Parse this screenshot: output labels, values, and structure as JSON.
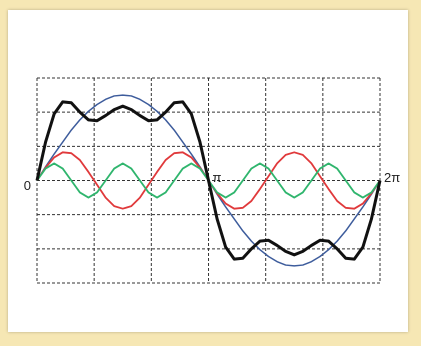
{
  "chart_data": {
    "type": "line",
    "x": [
      0,
      0.157,
      0.314,
      0.471,
      0.628,
      0.785,
      0.942,
      1.1,
      1.257,
      1.414,
      1.571,
      1.728,
      1.885,
      2.042,
      2.199,
      2.356,
      2.513,
      2.67,
      2.827,
      2.985,
      3.142,
      3.299,
      3.456,
      3.613,
      3.77,
      3.927,
      4.084,
      4.241,
      4.398,
      4.555,
      4.712,
      4.869,
      5.027,
      5.184,
      5.341,
      5.498,
      5.655,
      5.812,
      5.969,
      6.126,
      6.283
    ],
    "series": [
      {
        "color": "#3d5c9c",
        "width": 1.5,
        "values": [
          0,
          0.16,
          0.31,
          0.45,
          0.59,
          0.71,
          0.81,
          0.89,
          0.95,
          0.99,
          1,
          0.99,
          0.95,
          0.89,
          0.81,
          0.71,
          0.59,
          0.45,
          0.31,
          0.16,
          0,
          -0.16,
          -0.31,
          -0.45,
          -0.59,
          -0.71,
          -0.81,
          -0.89,
          -0.95,
          -0.99,
          -1,
          -0.99,
          -0.95,
          -0.89,
          -0.81,
          -0.71,
          -0.59,
          -0.45,
          -0.31,
          -0.16,
          0
        ]
      },
      {
        "color": "#e0393b",
        "width": 1.8,
        "values": [
          0,
          0.15,
          0.27,
          0.33,
          0.32,
          0.24,
          0.1,
          -0.05,
          -0.2,
          -0.3,
          -0.33,
          -0.3,
          -0.2,
          -0.05,
          0.1,
          0.24,
          0.32,
          0.33,
          0.27,
          0.15,
          0,
          -0.15,
          -0.27,
          -0.33,
          -0.32,
          -0.24,
          -0.1,
          0.05,
          0.2,
          0.3,
          0.33,
          0.3,
          0.2,
          0.05,
          -0.1,
          -0.24,
          -0.32,
          -0.33,
          -0.27,
          -0.15,
          0
        ]
      },
      {
        "color": "#2fb56d",
        "width": 1.8,
        "values": [
          0,
          0.14,
          0.2,
          0.14,
          0,
          -0.14,
          -0.2,
          -0.14,
          0,
          0.14,
          0.2,
          0.14,
          0,
          -0.14,
          -0.2,
          -0.14,
          0,
          0.14,
          0.2,
          0.14,
          0,
          -0.14,
          -0.2,
          -0.14,
          0,
          0.14,
          0.2,
          0.14,
          0,
          -0.14,
          -0.2,
          -0.14,
          0,
          0.14,
          0.2,
          0.14,
          0,
          -0.14,
          -0.2,
          -0.14,
          0
        ]
      },
      {
        "color": "#111111",
        "width": 3,
        "values": [
          0,
          0.45,
          0.78,
          0.92,
          0.91,
          0.8,
          0.71,
          0.7,
          0.76,
          0.83,
          0.87,
          0.83,
          0.76,
          0.7,
          0.71,
          0.8,
          0.91,
          0.92,
          0.78,
          0.45,
          0,
          -0.45,
          -0.78,
          -0.92,
          -0.91,
          -0.8,
          -0.71,
          -0.7,
          -0.76,
          -0.83,
          -0.87,
          -0.83,
          -0.76,
          -0.7,
          -0.71,
          -0.8,
          -0.91,
          -0.92,
          -0.78,
          -0.45,
          0
        ]
      }
    ],
    "xlim": [
      0,
      6.283
    ],
    "ylim": [
      -1.2,
      1.2
    ],
    "xticks": [
      {
        "value": 0,
        "label": "0"
      },
      {
        "value": 3.142,
        "label": "π"
      },
      {
        "value": 6.283,
        "label": "2π"
      }
    ],
    "xgrid": [
      0,
      1.047,
      2.094,
      3.142,
      4.189,
      5.236,
      6.283
    ],
    "ygrid": [
      -1.2,
      -0.8,
      -0.4,
      0,
      0.4,
      0.8,
      1.2
    ],
    "grid": true
  }
}
